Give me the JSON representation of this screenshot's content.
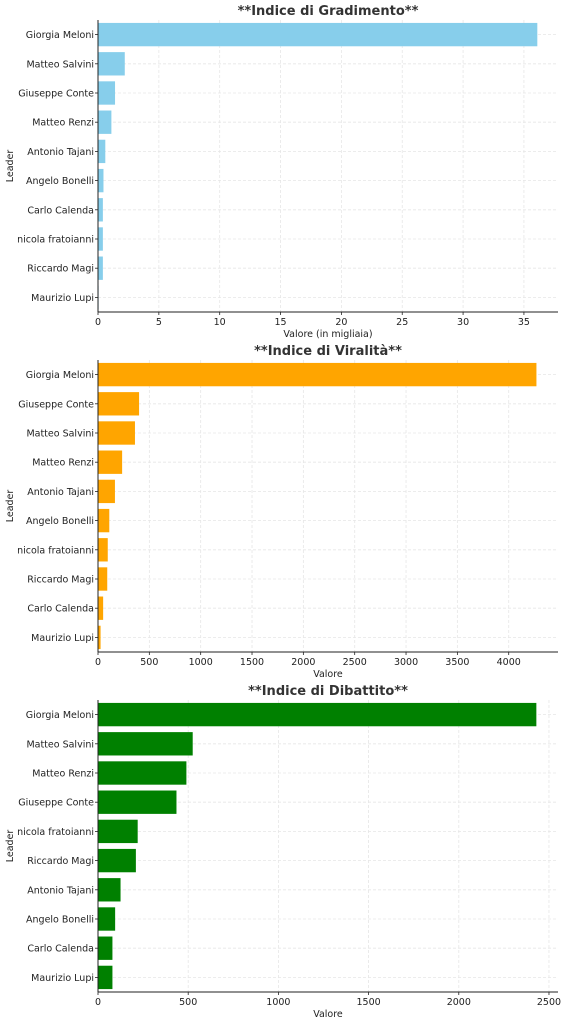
{
  "chart_data": [
    {
      "type": "bar",
      "orientation": "horizontal",
      "title": "**Indice di Gradimento**",
      "xlabel": "Valore (in migliaia)",
      "ylabel": "Leader",
      "color": "#87ceeb",
      "xlim": [
        0,
        37.8
      ],
      "xticks": [
        0,
        5,
        10,
        15,
        20,
        25,
        30,
        35
      ],
      "grid": true,
      "categories": [
        "Giorgia Meloni",
        "Matteo Salvini",
        "Giuseppe Conte",
        "Matteo Renzi",
        "Antonio Tajani",
        "Angelo Bonelli",
        "Carlo Calenda",
        "nicola fratoianni",
        "Riccardo Magi",
        "Maurizio Lupi"
      ],
      "values": [
        36.1,
        2.2,
        1.4,
        1.1,
        0.6,
        0.45,
        0.4,
        0.4,
        0.4,
        0.05
      ]
    },
    {
      "type": "bar",
      "orientation": "horizontal",
      "title": "**Indice di Viralità**",
      "xlabel": "Valore",
      "ylabel": "Leader",
      "color": "#ffa500",
      "xlim": [
        0,
        4480
      ],
      "xticks": [
        0,
        500,
        1000,
        1500,
        2000,
        2500,
        3000,
        3500,
        4000
      ],
      "grid": true,
      "categories": [
        "Giorgia Meloni",
        "Giuseppe Conte",
        "Matteo Salvini",
        "Matteo Renzi",
        "Antonio Tajani",
        "Angelo Bonelli",
        "nicola fratoianni",
        "Riccardo Magi",
        "Carlo Calenda",
        "Maurizio Lupi"
      ],
      "values": [
        4270,
        400,
        360,
        235,
        165,
        110,
        95,
        90,
        50,
        25
      ]
    },
    {
      "type": "bar",
      "orientation": "horizontal",
      "title": "**Indice di Dibattito**",
      "xlabel": "Valore",
      "ylabel": "Leader",
      "color": "#008000",
      "xlim": [
        0,
        2550
      ],
      "xticks": [
        0,
        500,
        1000,
        1500,
        2000,
        2500
      ],
      "grid": true,
      "categories": [
        "Giorgia Meloni",
        "Matteo Salvini",
        "Matteo Renzi",
        "Giuseppe Conte",
        "nicola fratoianni",
        "Riccardo Magi",
        "Antonio Tajani",
        "Angelo Bonelli",
        "Carlo Calenda",
        "Maurizio Lupi"
      ],
      "values": [
        2430,
        525,
        490,
        435,
        220,
        210,
        125,
        95,
        80,
        80
      ]
    }
  ]
}
